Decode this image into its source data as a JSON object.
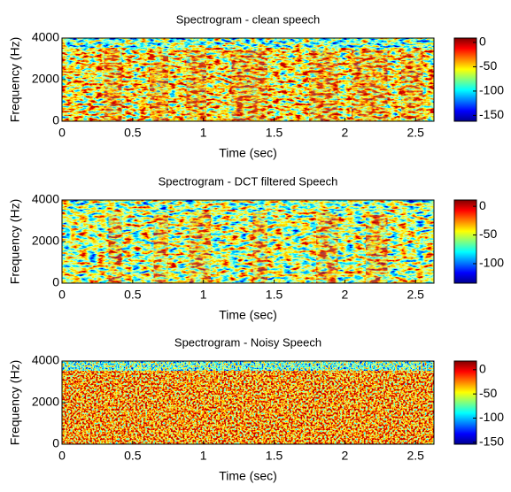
{
  "chart_data": [
    {
      "type": "spectrogram",
      "title": "Spectrogram - clean speech",
      "x_label": "Time (sec)",
      "y_label": "Frequency (Hz)",
      "xlim": [
        0,
        2.63
      ],
      "xticks": [
        0,
        0.5,
        1,
        1.5,
        2,
        2.5
      ],
      "ylim": [
        0,
        4000
      ],
      "yticks": [
        0,
        2000,
        4000
      ],
      "colorbar": {
        "clim": [
          -162,
          9
        ],
        "ticks": [
          0,
          -50,
          -100,
          -150
        ]
      }
    },
    {
      "type": "spectrogram",
      "title": "Spectrogram - DCT filtered Speech",
      "x_label": "Time (sec)",
      "y_label": "Frequency (Hz)",
      "xlim": [
        0,
        2.63
      ],
      "xticks": [
        0,
        0.5,
        1,
        1.5,
        2,
        2.5
      ],
      "ylim": [
        0,
        4000
      ],
      "yticks": [
        0,
        2000,
        4000
      ],
      "colorbar": {
        "clim": [
          -134,
          11
        ],
        "ticks": [
          0,
          -50,
          -100
        ]
      }
    },
    {
      "type": "spectrogram",
      "title": "Spectrogram - Noisy Speech",
      "x_label": "Time (sec)",
      "y_label": "Frequency (Hz)",
      "xlim": [
        0,
        2.63
      ],
      "xticks": [
        0,
        0.5,
        1,
        1.5,
        2,
        2.5
      ],
      "ylim": [
        0,
        4000
      ],
      "yticks": [
        0,
        2000,
        4000
      ],
      "colorbar": {
        "clim": [
          -154,
          18
        ],
        "ticks": [
          0,
          -50,
          -100,
          -150
        ]
      }
    }
  ]
}
